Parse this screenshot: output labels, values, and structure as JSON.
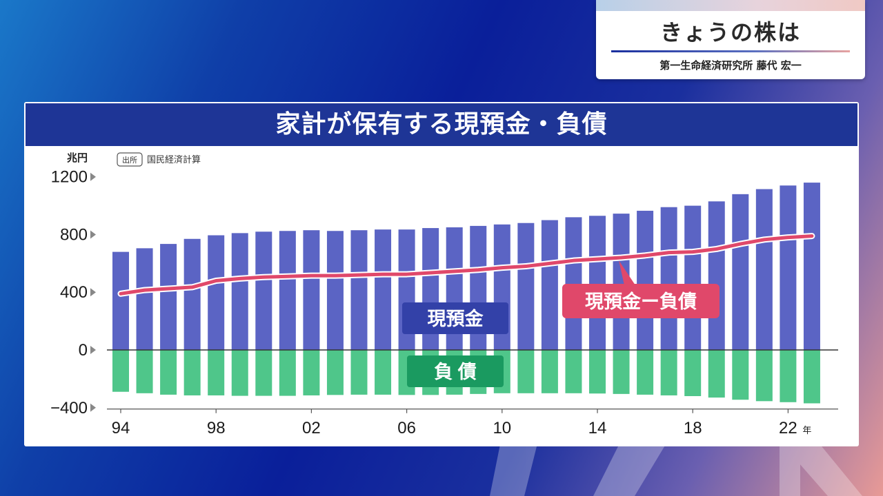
{
  "badge": {
    "title": "きょうの株は",
    "name": "第一生命経済研究所 藤代 宏一"
  },
  "panel": {
    "title": "家計が保有する現預金・負債"
  },
  "source": {
    "tag": "出所",
    "name": "国民経済計算"
  },
  "unit": "兆円",
  "colors": {
    "deposits": "#5b64c4",
    "liabilities": "#4fc68a",
    "net": "#e0486a",
    "deposits_label_bg": "#3341a8",
    "liabilities_label_bg": "#1a9a60"
  },
  "chart_data": {
    "type": "bar",
    "categories": [
      "1994",
      "1995",
      "1996",
      "1997",
      "1998",
      "1999",
      "2000",
      "2001",
      "2002",
      "2003",
      "2004",
      "2005",
      "2006",
      "2007",
      "2008",
      "2009",
      "2010",
      "2011",
      "2012",
      "2013",
      "2014",
      "2015",
      "2016",
      "2017",
      "2018",
      "2019",
      "2020",
      "2021",
      "2022",
      "2023"
    ],
    "series": [
      {
        "name": "現預金",
        "type": "bar",
        "values": [
          680,
          705,
          735,
          770,
          795,
          810,
          820,
          825,
          830,
          825,
          830,
          835,
          835,
          845,
          850,
          860,
          870,
          880,
          900,
          920,
          930,
          945,
          965,
          990,
          1000,
          1030,
          1080,
          1115,
          1140,
          1160
        ]
      },
      {
        "name": "負債",
        "type": "bar",
        "values": [
          -290,
          -300,
          -310,
          -315,
          -315,
          -318,
          -318,
          -318,
          -315,
          -312,
          -310,
          -310,
          -312,
          -312,
          -310,
          -305,
          -300,
          -300,
          -300,
          -300,
          -302,
          -305,
          -310,
          -315,
          -320,
          -330,
          -345,
          -355,
          -362,
          -370
        ]
      },
      {
        "name": "現預金ー負債",
        "type": "line",
        "values": [
          390,
          415,
          425,
          435,
          480,
          495,
          505,
          510,
          515,
          515,
          520,
          525,
          525,
          535,
          545,
          555,
          570,
          580,
          600,
          620,
          630,
          640,
          655,
          675,
          680,
          700,
          735,
          765,
          780,
          790
        ]
      }
    ],
    "ylim": [
      -400,
      1200
    ],
    "yticks": [
      1200,
      800,
      400,
      0,
      -400
    ],
    "xticks": [
      "94",
      "98",
      "02",
      "06",
      "10",
      "14",
      "18",
      "22"
    ],
    "xtick_suffix": "年",
    "labels": {
      "deposits": "現預金",
      "liabilities": "負 債",
      "net": "現預金ー負債"
    }
  }
}
